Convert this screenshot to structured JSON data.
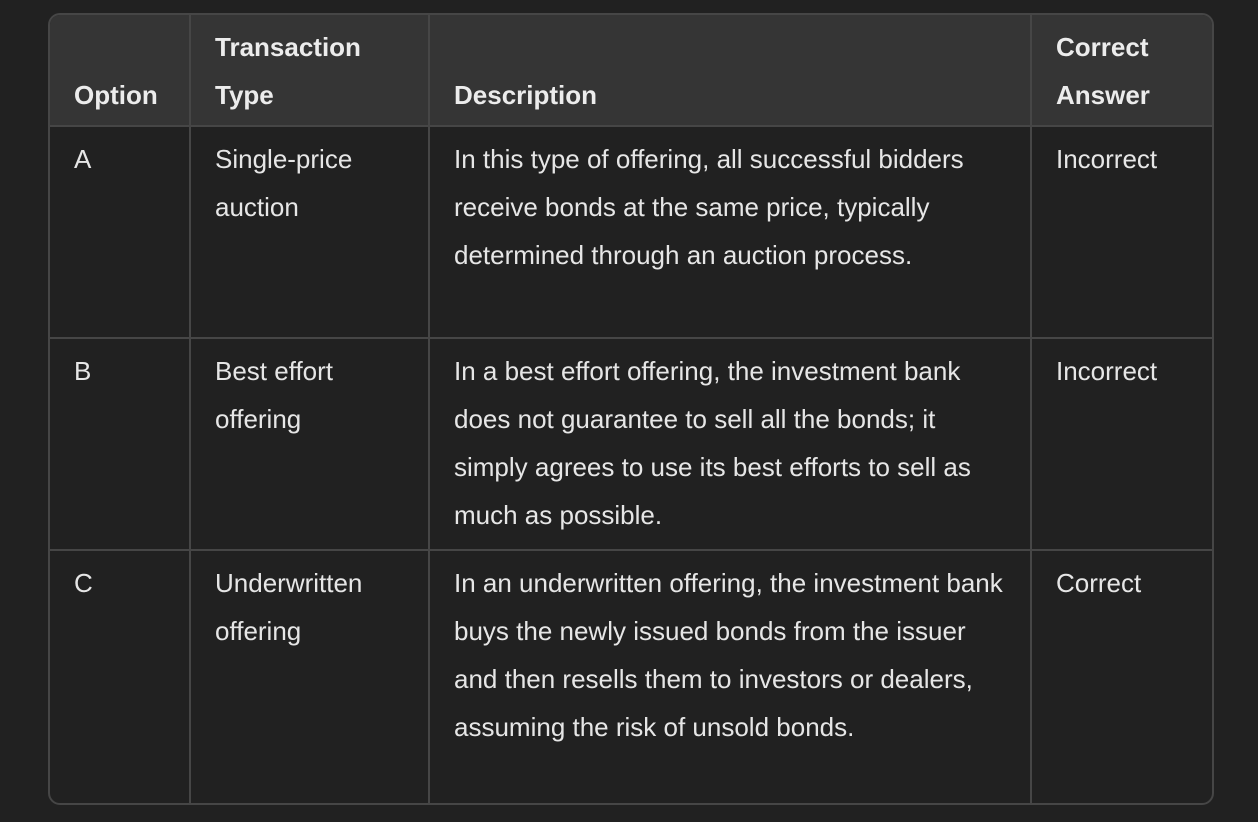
{
  "table": {
    "headers": [
      "Option",
      "Transaction Type",
      "Description",
      "Correct Answer"
    ],
    "rows": [
      {
        "option": "A",
        "type": "Single-price auction",
        "description": "In this type of offering, all successful bidders receive bonds at the same price, typically determined through an auction process.",
        "answer": "Incorrect"
      },
      {
        "option": "B",
        "type": "Best effort offering",
        "description": "In a best effort offering, the investment bank does not guarantee to sell all the bonds; it simply agrees to use its best efforts to sell as much as possible.",
        "answer": "Incorrect"
      },
      {
        "option": "C",
        "type": "Underwritten offering",
        "description": "In an underwritten offering, the investment bank buys the newly issued bonds from the issuer and then resells them to investors or dealers, assuming the risk of unsold bonds.",
        "answer": "Correct"
      }
    ]
  }
}
